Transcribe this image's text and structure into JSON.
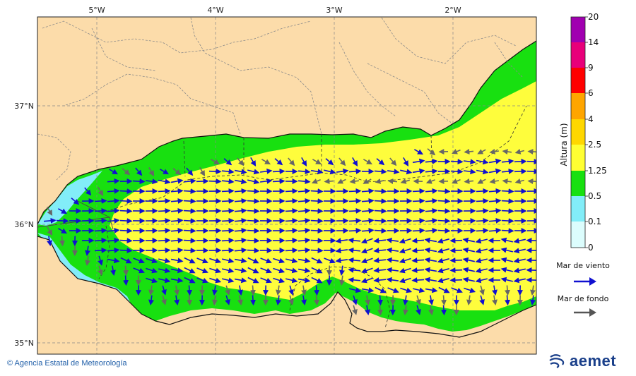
{
  "map": {
    "lon_ticks": [
      "5°W",
      "4°W",
      "3°W",
      "2°W"
    ],
    "lat_ticks": [
      "37°N",
      "36°N",
      "35°N"
    ],
    "colors": {
      "land": "#fcdcaa",
      "sea_0": "#dcfdfd",
      "sea_01": "#82edf8",
      "sea_05": "#18e010",
      "sea_125": "#fefd3c",
      "wind_wave": "#1010d0",
      "swell": "#666666"
    }
  },
  "legend": {
    "title": "Altura (m)",
    "levels": [
      "20",
      "14",
      "9",
      "6",
      "4",
      "2.5",
      "1.25",
      "0.5",
      "0.1",
      "0"
    ],
    "bands": [
      {
        "from": "14",
        "to": "20",
        "color": "#a000b0"
      },
      {
        "from": "9",
        "to": "14",
        "color": "#e8007a"
      },
      {
        "from": "6",
        "to": "9",
        "color": "#ff0000"
      },
      {
        "from": "4",
        "to": "6",
        "color": "#ffa500"
      },
      {
        "from": "2.5",
        "to": "4",
        "color": "#ffd700"
      },
      {
        "from": "1.25",
        "to": "2.5",
        "color": "#ffff33"
      },
      {
        "from": "0.5",
        "to": "1.25",
        "color": "#18e010"
      },
      {
        "from": "0.1",
        "to": "0.5",
        "color": "#82edf8"
      },
      {
        "from": "0",
        "to": "0.1",
        "color": "#dcfdfd"
      }
    ],
    "wind_sea_label": "Mar de viento",
    "swell_label": "Mar de fondo"
  },
  "footer": {
    "credit": "© Agencia Estatal de Meteorología",
    "brand": "aemet"
  }
}
